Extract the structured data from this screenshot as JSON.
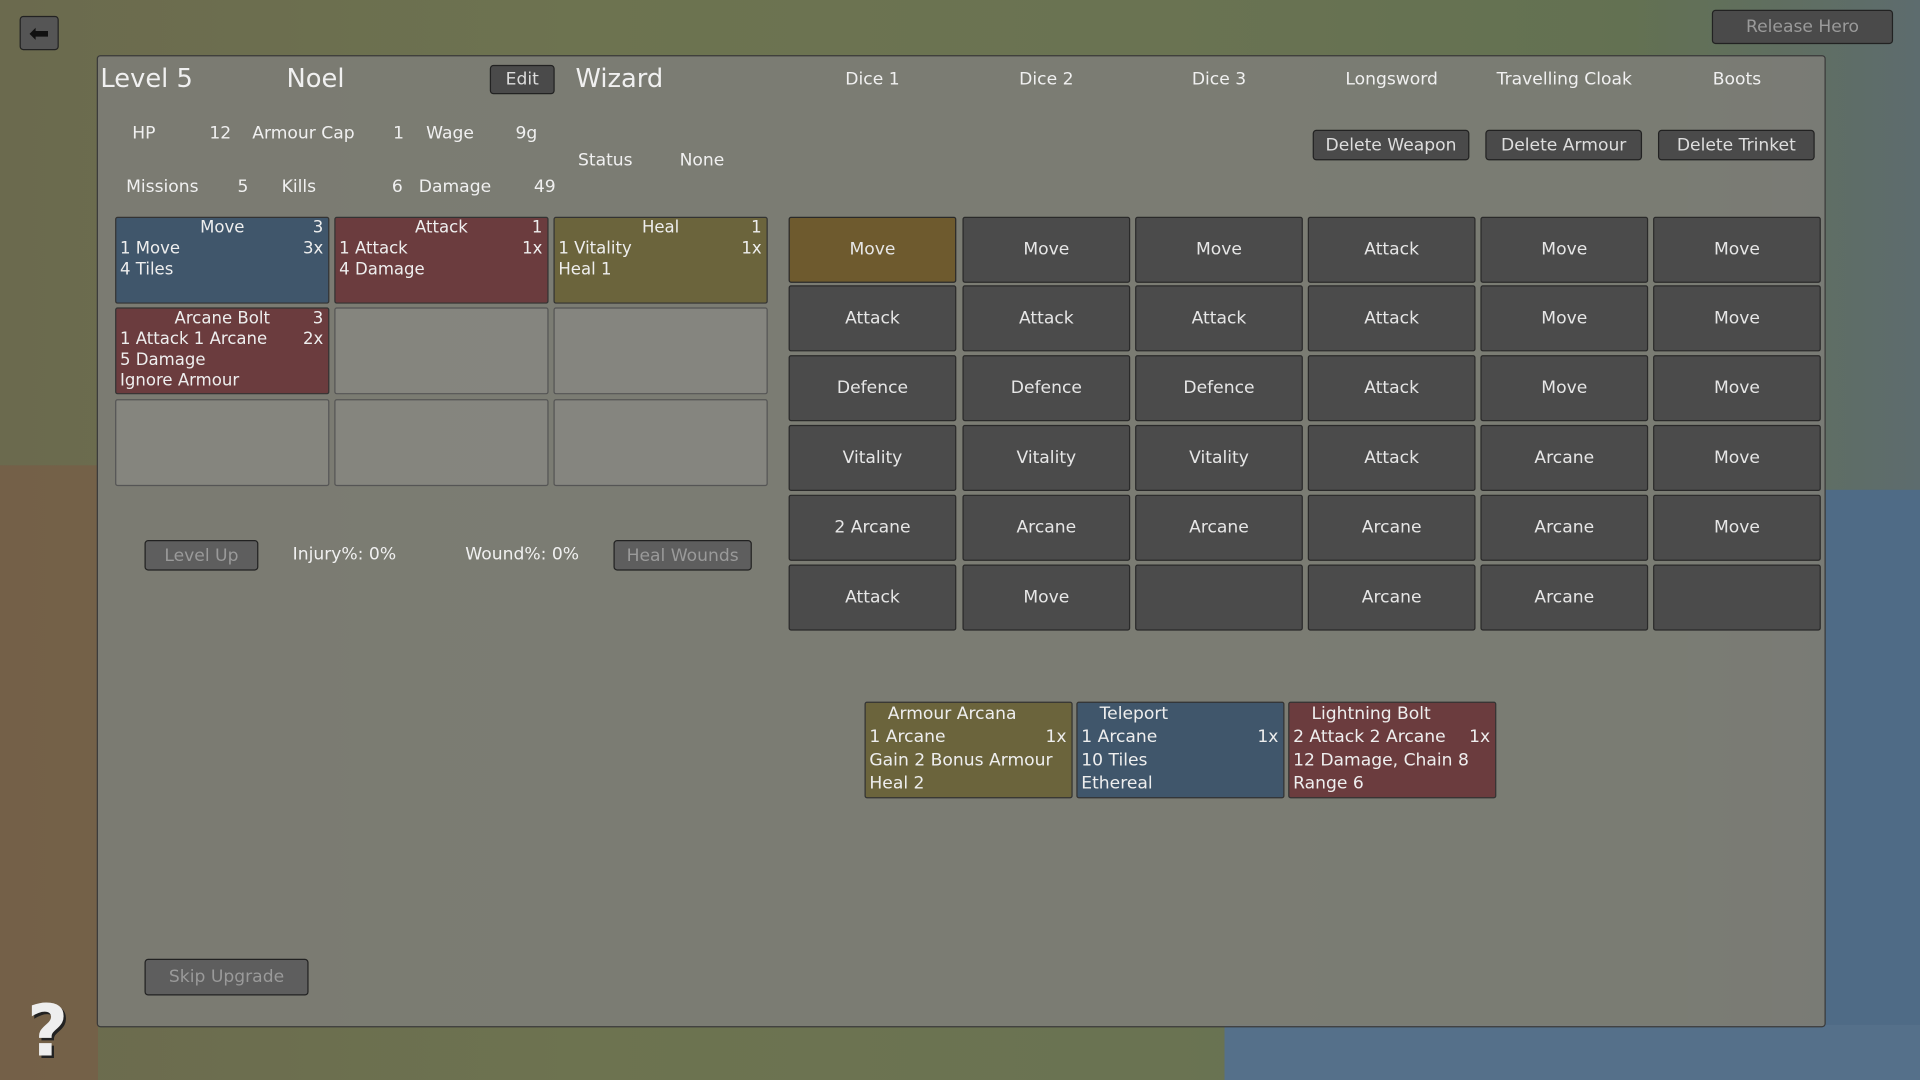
{
  "nav": {
    "back_icon": "arrow-left-icon",
    "release_label": "Release Hero",
    "help_icon": "question-mark-icon"
  },
  "header": {
    "level": "Level 5",
    "name": "Noel",
    "edit_label": "Edit",
    "class": "Wizard"
  },
  "dice_headers": [
    "Dice 1",
    "Dice 2",
    "Dice 3",
    "Longsword",
    "Travelling Cloak",
    "Boots"
  ],
  "stats": {
    "hp_label": "HP",
    "hp": "12",
    "armour_cap_label": "Armour Cap",
    "armour_cap": "1",
    "wage_label": "Wage",
    "wage": "9g",
    "status_label": "Status",
    "status": "None",
    "missions_label": "Missions",
    "missions": "5",
    "kills_label": "Kills",
    "kills": "6",
    "damage_label": "Damage",
    "damage": "49"
  },
  "equipment_buttons": [
    "Delete Weapon",
    "Delete Armour",
    "Delete Trinket"
  ],
  "abilities": [
    {
      "title": "Move",
      "count": "3",
      "cost": "1 Move",
      "mult": "3x",
      "lines": [
        "4 Tiles"
      ],
      "color": "blue"
    },
    {
      "title": "Attack",
      "count": "1",
      "cost": "1 Attack",
      "mult": "1x",
      "lines": [
        "4 Damage"
      ],
      "color": "red"
    },
    {
      "title": "Heal",
      "count": "1",
      "cost": "1 Vitality",
      "mult": "1x",
      "lines": [
        "Heal 1"
      ],
      "color": "yellow"
    },
    {
      "title": "Arcane Bolt",
      "count": "3",
      "cost": "1 Attack 1 Arcane",
      "mult": "2x",
      "lines": [
        "5 Damage",
        "Ignore Armour"
      ],
      "color": "red"
    },
    null,
    null,
    null,
    null,
    null
  ],
  "dice_rows": [
    [
      "Move",
      "Move",
      "Move",
      "Attack",
      "Move",
      "Move"
    ],
    [
      "Attack",
      "Attack",
      "Attack",
      "Attack",
      "Move",
      "Move"
    ],
    [
      "Defence",
      "Defence",
      "Defence",
      "Attack",
      "Move",
      "Move"
    ],
    [
      "Vitality",
      "Vitality",
      "Vitality",
      "Attack",
      "Arcane",
      "Move"
    ],
    [
      "2 Arcane",
      "Arcane",
      "Arcane",
      "Arcane",
      "Arcane",
      "Move"
    ],
    [
      "Attack",
      "Move",
      "",
      "Arcane",
      "Arcane",
      ""
    ]
  ],
  "highlight_color": "#6e5a2e",
  "wounds": {
    "level_up_label": "Level Up",
    "injury": "Injury%: 0%",
    "wound": "Wound%: 0%",
    "heal_wounds_label": "Heal Wounds"
  },
  "upgrades": [
    {
      "title": "Armour Arcana",
      "cost": "1 Arcane",
      "mult": "1x",
      "lines": [
        "Gain 2 Bonus Armour",
        "Heal 2"
      ],
      "color": "yellow"
    },
    {
      "title": "Teleport",
      "cost": "1 Arcane",
      "mult": "1x",
      "lines": [
        "10 Tiles",
        "Ethereal"
      ],
      "color": "blue"
    },
    {
      "title": "Lightning Bolt",
      "cost": "2 Attack 2 Arcane",
      "mult": "1x",
      "lines": [
        "12 Damage, Chain 8",
        "Range 6"
      ],
      "color": "red"
    }
  ],
  "skip_label": "Skip Upgrade"
}
